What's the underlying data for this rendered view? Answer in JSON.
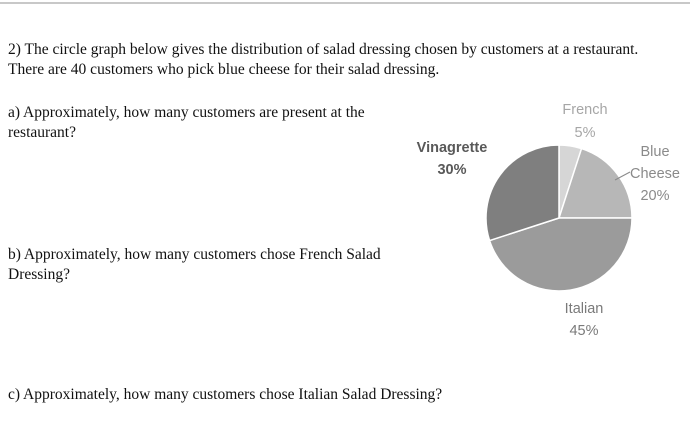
{
  "problem": {
    "intro": "2) The circle graph below gives the distribution of salad dressing chosen by customers at a restaurant. There are 40 customers who pick blue cheese for their salad dressing.",
    "question_a": "a)  Approximately, how many customers are present at the restaurant?",
    "question_b": "b) Approximately, how many customers chose French Salad Dressing?",
    "question_c": "c) Approximately, how many customers chose Italian Salad Dressing?"
  },
  "chart_data": {
    "type": "pie",
    "title": "",
    "slices": [
      {
        "label_lines": [
          "French",
          "5%"
        ],
        "value": 5,
        "color": "#d6d6d6",
        "label_color": "#a6a6a6"
      },
      {
        "label_lines": [
          "Blue",
          "Cheese",
          "20%"
        ],
        "value": 20,
        "color": "#b7b7b7",
        "label_color": "#8a8a8a"
      },
      {
        "label_lines": [
          "Italian",
          "45%"
        ],
        "value": 45,
        "color": "#9b9b9b",
        "label_color": "#7a7a7a"
      },
      {
        "label_lines": [
          "Vinagrette",
          "30%"
        ],
        "value": 30,
        "color": "#7f7f7f",
        "label_color": "#595959"
      }
    ],
    "start_angle_deg": 0,
    "direction": "clockwise",
    "legend": "none"
  }
}
